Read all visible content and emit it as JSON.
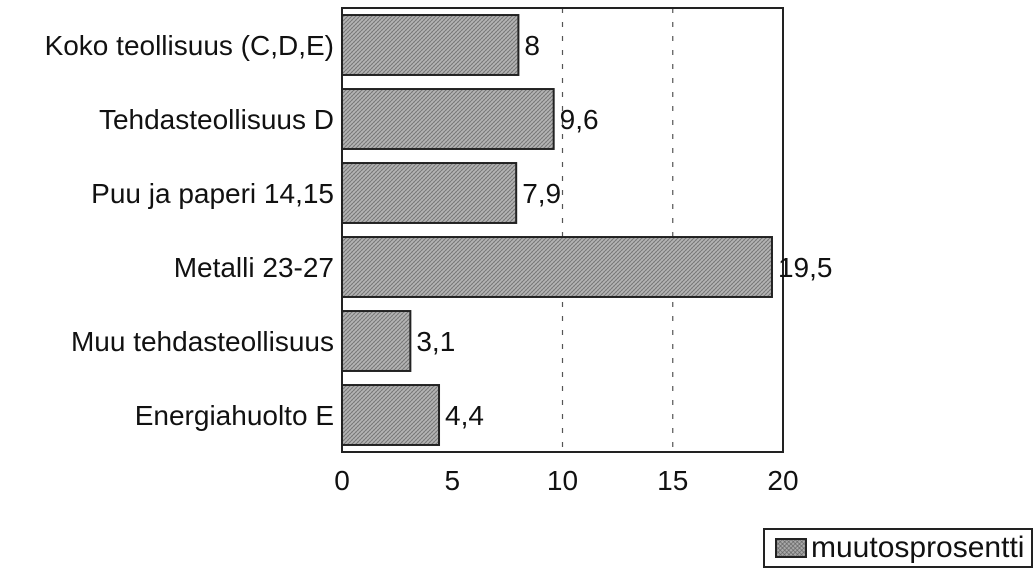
{
  "chart_data": {
    "type": "bar",
    "orientation": "horizontal",
    "categories": [
      "Koko teollisuus (C,D,E)",
      "Tehdasteollisuus D",
      "Puu ja paperi 14,15",
      "Metalli 23-27",
      "Muu tehdasteollisuus",
      "Energiahuolto E"
    ],
    "series": [
      {
        "name": "muutosprosentti",
        "values": [
          8,
          9.6,
          7.9,
          19.5,
          3.1,
          4.4
        ]
      }
    ],
    "value_labels": [
      "8",
      "9,6",
      "7,9",
      "19,5",
      "3,1",
      "4,4"
    ],
    "xlim": [
      0,
      20
    ],
    "xticks": [
      0,
      5,
      10,
      15,
      20
    ],
    "xtick_labels": [
      "0",
      "5",
      "10",
      "15",
      "20"
    ],
    "grid": "vertical dashed lines at 10 and 15",
    "legend_position": "bottom-right",
    "colors": {
      "bar_fill": "#a9a9a9",
      "bar_stroke": "#222222",
      "text": "#111111"
    }
  },
  "legend": {
    "label": "muutosprosentti"
  }
}
